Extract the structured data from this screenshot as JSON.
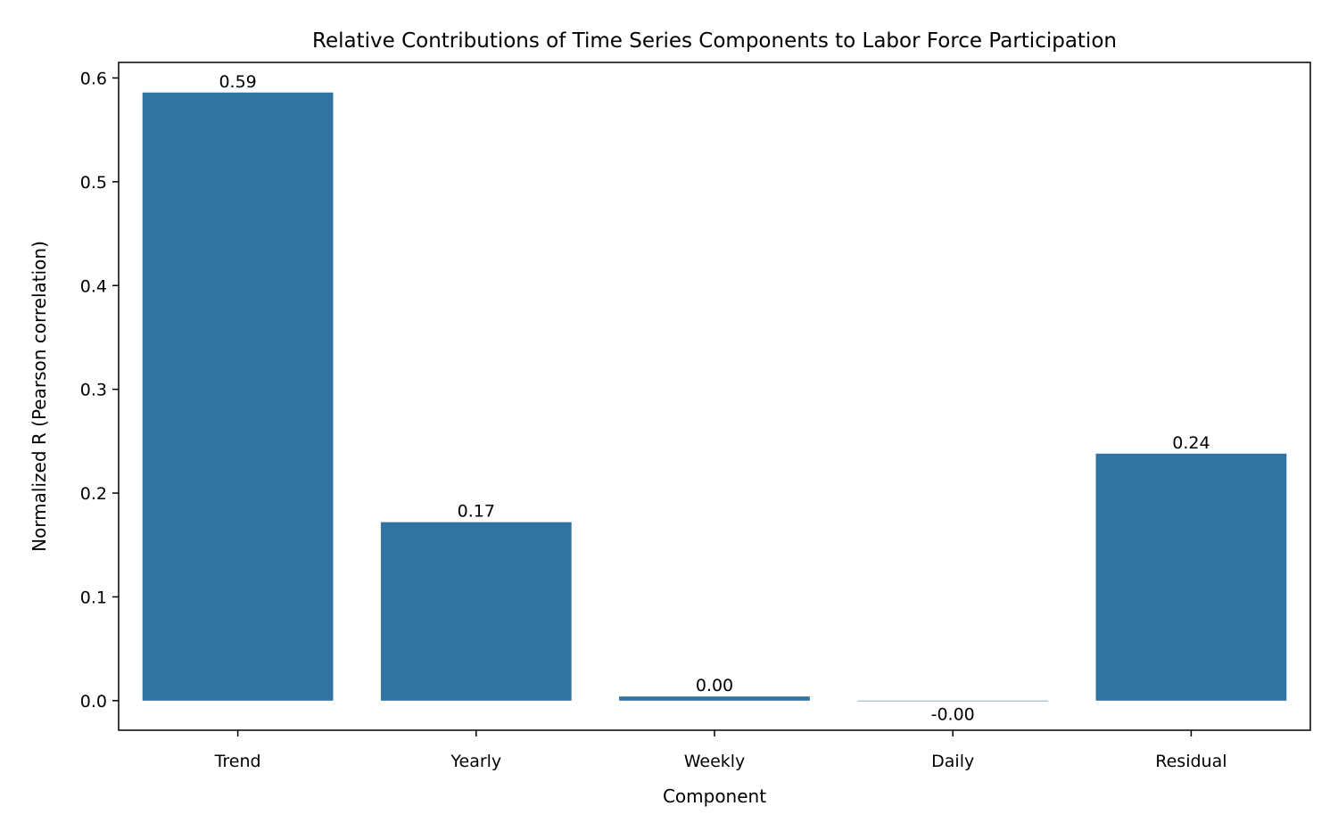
{
  "chart_data": {
    "type": "bar",
    "title": "Relative Contributions of Time Series Components to Labor Force Participation",
    "xlabel": "Component",
    "ylabel": "Normalized R (Pearson correlation)",
    "categories": [
      "Trend",
      "Yearly",
      "Weekly",
      "Daily",
      "Residual"
    ],
    "values": [
      0.586,
      0.172,
      0.004,
      -0.0005,
      0.238
    ],
    "data_labels": [
      "0.59",
      "0.17",
      "0.00",
      "-0.00",
      "0.24"
    ],
    "ylim": [
      -0.0285,
      0.615
    ],
    "yticks": [
      0.0,
      0.1,
      0.2,
      0.3,
      0.4,
      0.5,
      0.6
    ],
    "ytick_labels": [
      "0.0",
      "0.1",
      "0.2",
      "0.3",
      "0.4",
      "0.5",
      "0.6"
    ],
    "grid": false,
    "legend": "none",
    "bar_color": "#3274a1"
  }
}
